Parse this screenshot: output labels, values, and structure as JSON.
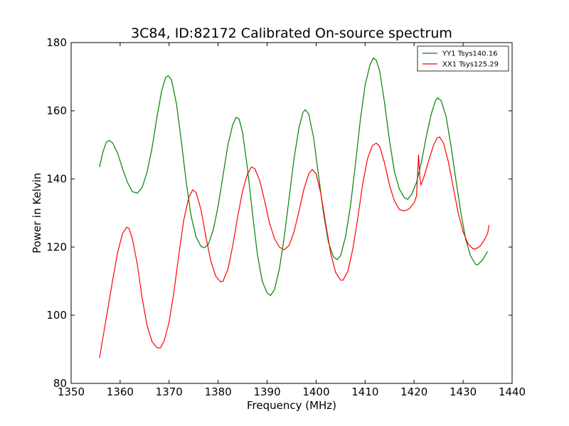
{
  "chart_data": {
    "type": "line",
    "title": "3C84, ID:82172 Calibrated On-source spectrum",
    "xlabel": "Frequency (MHz)",
    "ylabel": "Power in Kelvin",
    "xlim": [
      1350,
      1440
    ],
    "ylim": [
      80,
      180
    ],
    "xticks": [
      1350,
      1360,
      1370,
      1380,
      1390,
      1400,
      1410,
      1420,
      1430,
      1440
    ],
    "yticks": [
      80,
      100,
      120,
      140,
      160,
      180
    ],
    "grid": false,
    "legend_position": "top-right",
    "series": [
      {
        "name": "YY1 Tsys140.16",
        "color": "#008000",
        "points": [
          [
            1355.8,
            143.5
          ],
          [
            1356.5,
            148
          ],
          [
            1357.2,
            150.8
          ],
          [
            1357.8,
            151.3
          ],
          [
            1358.5,
            150.5
          ],
          [
            1359.5,
            147.5
          ],
          [
            1360.5,
            143
          ],
          [
            1361.5,
            139
          ],
          [
            1362.5,
            136.3
          ],
          [
            1363.5,
            135.8
          ],
          [
            1364.5,
            137.5
          ],
          [
            1365.5,
            142
          ],
          [
            1366.5,
            149
          ],
          [
            1367.5,
            158
          ],
          [
            1368.5,
            166
          ],
          [
            1369.3,
            169.8
          ],
          [
            1369.8,
            170.3
          ],
          [
            1370.5,
            169
          ],
          [
            1371.5,
            162
          ],
          [
            1372.5,
            151
          ],
          [
            1373.5,
            139
          ],
          [
            1374.5,
            129
          ],
          [
            1375.5,
            123
          ],
          [
            1376.5,
            120.2
          ],
          [
            1377.2,
            119.8
          ],
          [
            1378,
            120.8
          ],
          [
            1379,
            125
          ],
          [
            1380,
            132
          ],
          [
            1381,
            141
          ],
          [
            1382,
            150
          ],
          [
            1383,
            156
          ],
          [
            1383.7,
            158.1
          ],
          [
            1384.3,
            157.5
          ],
          [
            1385,
            153.5
          ],
          [
            1386,
            143
          ],
          [
            1387,
            130
          ],
          [
            1388,
            118
          ],
          [
            1389,
            110
          ],
          [
            1390,
            106.5
          ],
          [
            1390.7,
            105.8
          ],
          [
            1391.5,
            107.5
          ],
          [
            1392.5,
            113.5
          ],
          [
            1393.5,
            123
          ],
          [
            1394.5,
            134.5
          ],
          [
            1395.5,
            146
          ],
          [
            1396.5,
            155
          ],
          [
            1397.3,
            159.5
          ],
          [
            1397.8,
            160.3
          ],
          [
            1398.5,
            159
          ],
          [
            1399.5,
            152
          ],
          [
            1400.5,
            141
          ],
          [
            1401.5,
            130
          ],
          [
            1402.5,
            121.5
          ],
          [
            1403.5,
            117.2
          ],
          [
            1404.3,
            116.3
          ],
          [
            1405,
            117.5
          ],
          [
            1406,
            123
          ],
          [
            1407,
            132
          ],
          [
            1408,
            144
          ],
          [
            1409,
            157
          ],
          [
            1410,
            167.5
          ],
          [
            1411,
            173.5
          ],
          [
            1411.7,
            175.5
          ],
          [
            1412.3,
            174.8
          ],
          [
            1413,
            171.5
          ],
          [
            1414,
            162
          ],
          [
            1415,
            151
          ],
          [
            1416,
            142
          ],
          [
            1417,
            137
          ],
          [
            1418,
            134.5
          ],
          [
            1418.7,
            134
          ],
          [
            1419.5,
            135.5
          ],
          [
            1420.5,
            139
          ],
          [
            1421.5,
            145
          ],
          [
            1422.5,
            152.5
          ],
          [
            1423.5,
            159
          ],
          [
            1424.3,
            162.8
          ],
          [
            1424.8,
            163.8
          ],
          [
            1425.5,
            163
          ],
          [
            1426.5,
            158.5
          ],
          [
            1427.5,
            150
          ],
          [
            1428.5,
            140
          ],
          [
            1429.5,
            130.5
          ],
          [
            1430.5,
            122.5
          ],
          [
            1431.5,
            117.5
          ],
          [
            1432.5,
            115
          ],
          [
            1433,
            114.8
          ],
          [
            1434,
            116.3
          ],
          [
            1435,
            118.7
          ]
        ]
      },
      {
        "name": "XX1 Tsys125.29",
        "color": "#ff0000",
        "points": [
          [
            1355.8,
            87.5
          ],
          [
            1356.5,
            93.5
          ],
          [
            1357.5,
            102
          ],
          [
            1358.5,
            110.5
          ],
          [
            1359.5,
            118.5
          ],
          [
            1360.5,
            124
          ],
          [
            1361.3,
            125.8
          ],
          [
            1361.8,
            125.5
          ],
          [
            1362.5,
            122.5
          ],
          [
            1363.5,
            115
          ],
          [
            1364.5,
            105
          ],
          [
            1365.5,
            97
          ],
          [
            1366.5,
            92.3
          ],
          [
            1367.5,
            90.5
          ],
          [
            1368.2,
            90.4
          ],
          [
            1369,
            92.5
          ],
          [
            1370,
            98
          ],
          [
            1371,
            107
          ],
          [
            1372,
            118
          ],
          [
            1373,
            128
          ],
          [
            1374,
            134.5
          ],
          [
            1374.8,
            136.8
          ],
          [
            1375.5,
            136
          ],
          [
            1376.5,
            131
          ],
          [
            1377.5,
            123
          ],
          [
            1378.5,
            116
          ],
          [
            1379.5,
            111.5
          ],
          [
            1380.5,
            109.8
          ],
          [
            1381,
            110
          ],
          [
            1382,
            113.5
          ],
          [
            1383,
            120.5
          ],
          [
            1384,
            129
          ],
          [
            1385,
            136.5
          ],
          [
            1386,
            141.5
          ],
          [
            1386.8,
            143.5
          ],
          [
            1387.5,
            143
          ],
          [
            1388.5,
            139.5
          ],
          [
            1389.5,
            133.5
          ],
          [
            1390.5,
            127
          ],
          [
            1391.5,
            122.5
          ],
          [
            1392.5,
            120
          ],
          [
            1393.5,
            119.2
          ],
          [
            1394.5,
            120.5
          ],
          [
            1395.5,
            124.5
          ],
          [
            1396.5,
            130.5
          ],
          [
            1397.5,
            137
          ],
          [
            1398.5,
            141.5
          ],
          [
            1399.2,
            142.8
          ],
          [
            1400,
            141.5
          ],
          [
            1401,
            135.5
          ],
          [
            1402,
            126.5
          ],
          [
            1403,
            118
          ],
          [
            1404,
            112.5
          ],
          [
            1405,
            110.3
          ],
          [
            1405.5,
            110.3
          ],
          [
            1406.5,
            113
          ],
          [
            1407.5,
            119.5
          ],
          [
            1408.5,
            128.5
          ],
          [
            1409.5,
            138.5
          ],
          [
            1410.5,
            146
          ],
          [
            1411.5,
            149.8
          ],
          [
            1412.3,
            150.5
          ],
          [
            1413,
            149.5
          ],
          [
            1414,
            144.5
          ],
          [
            1415,
            138
          ],
          [
            1416,
            133.5
          ],
          [
            1417,
            131
          ],
          [
            1418,
            130.6
          ],
          [
            1419,
            131.2
          ],
          [
            1420,
            133
          ],
          [
            1420.5,
            135
          ],
          [
            1420.9,
            147
          ],
          [
            1421.2,
            140
          ],
          [
            1421.4,
            138.2
          ],
          [
            1422,
            140.5
          ],
          [
            1423,
            145.5
          ],
          [
            1424,
            150
          ],
          [
            1424.7,
            152
          ],
          [
            1425.2,
            152.3
          ],
          [
            1426,
            150.5
          ],
          [
            1427,
            145
          ],
          [
            1428,
            137.5
          ],
          [
            1429,
            130
          ],
          [
            1430,
            124.5
          ],
          [
            1431,
            121
          ],
          [
            1432,
            119.5
          ],
          [
            1432.5,
            119.4
          ],
          [
            1433.5,
            120.3
          ],
          [
            1434.5,
            122.5
          ],
          [
            1435,
            124
          ],
          [
            1435.3,
            126.5
          ]
        ]
      }
    ]
  }
}
